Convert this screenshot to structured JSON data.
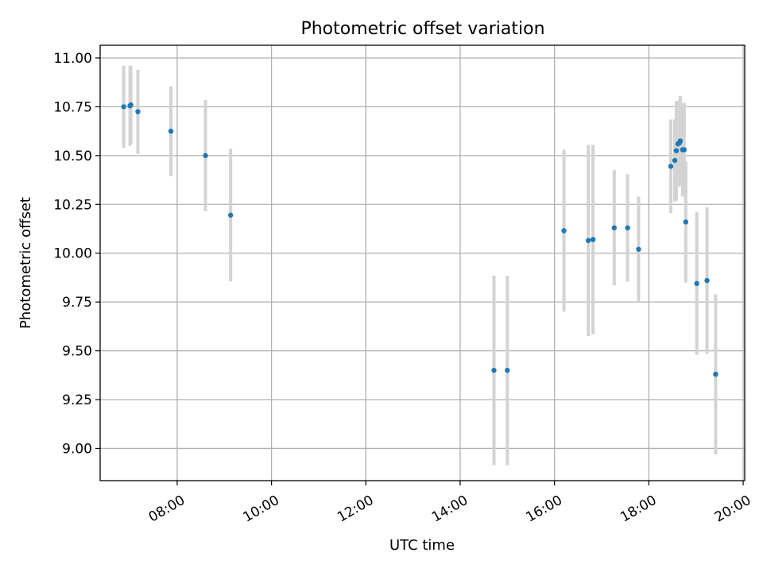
{
  "chart_data": {
    "type": "scatter",
    "title": "Photometric offset variation",
    "xlabel": "UTC time",
    "ylabel": "Photometric offset",
    "x_unit": "UTC time (HH:MM)",
    "xlim": [
      "06:22",
      "20:02"
    ],
    "ylim": [
      8.835,
      11.065
    ],
    "x_ticks": [
      "08:00",
      "10:00",
      "12:00",
      "14:00",
      "16:00",
      "18:00",
      "20:00"
    ],
    "y_ticks": [
      "9.00",
      "9.25",
      "9.50",
      "9.75",
      "10.00",
      "10.25",
      "10.50",
      "10.75",
      "11.00"
    ],
    "grid": true,
    "marker_color": "#1f77b4",
    "errorbar_color": "#d3d3d3",
    "points": [
      {
        "x": "06:52",
        "y": 10.75,
        "err": 0.21
      },
      {
        "x": "07:00",
        "y": 10.755,
        "err": 0.205
      },
      {
        "x": "07:01",
        "y": 10.76,
        "err": 0.2
      },
      {
        "x": "07:10",
        "y": 10.725,
        "err": 0.215
      },
      {
        "x": "07:52",
        "y": 10.625,
        "err": 0.23
      },
      {
        "x": "08:36",
        "y": 10.5,
        "err": 0.285
      },
      {
        "x": "09:08",
        "y": 10.195,
        "err": 0.34
      },
      {
        "x": "14:43",
        "y": 9.4,
        "err": 0.485
      },
      {
        "x": "15:00",
        "y": 9.4,
        "err": 0.485
      },
      {
        "x": "16:12",
        "y": 10.115,
        "err": 0.415
      },
      {
        "x": "16:43",
        "y": 10.065,
        "err": 0.49
      },
      {
        "x": "16:49",
        "y": 10.07,
        "err": 0.485
      },
      {
        "x": "17:16",
        "y": 10.13,
        "err": 0.295
      },
      {
        "x": "17:33",
        "y": 10.13,
        "err": 0.275
      },
      {
        "x": "17:47",
        "y": 10.02,
        "err": 0.27
      },
      {
        "x": "18:28",
        "y": 10.445,
        "err": 0.24
      },
      {
        "x": "18:33",
        "y": 10.475,
        "err": 0.21
      },
      {
        "x": "18:35",
        "y": 10.525,
        "err": 0.255
      },
      {
        "x": "18:37",
        "y": 10.56,
        "err": 0.22
      },
      {
        "x": "18:39",
        "y": 10.565,
        "err": 0.22
      },
      {
        "x": "18:40",
        "y": 10.575,
        "err": 0.23
      },
      {
        "x": "18:43",
        "y": 10.53,
        "err": 0.24
      },
      {
        "x": "18:45",
        "y": 10.53,
        "err": 0.24
      },
      {
        "x": "18:47",
        "y": 10.16,
        "err": 0.31
      },
      {
        "x": "19:01",
        "y": 9.845,
        "err": 0.365
      },
      {
        "x": "19:14",
        "y": 9.86,
        "err": 0.375
      },
      {
        "x": "19:25",
        "y": 9.38,
        "err": 0.41
      }
    ]
  }
}
